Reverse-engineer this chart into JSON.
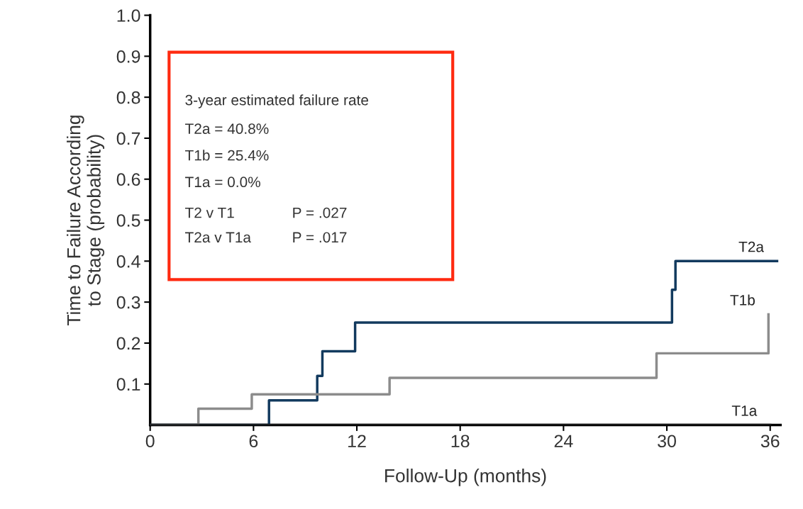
{
  "chart_data": {
    "type": "step",
    "ylabel": "Time to Failure According\nto Stage (probability)",
    "xlabel": "Follow-Up (months)",
    "xlim": [
      0,
      36.6
    ],
    "ylim": [
      0,
      1.0
    ],
    "xticks": [
      0,
      6,
      12,
      18,
      24,
      30,
      36
    ],
    "yticks": [
      0.1,
      0.2,
      0.3,
      0.4,
      0.5,
      0.6,
      0.7,
      0.8,
      0.9,
      {
        "value": 1,
        "label": "1.0"
      }
    ],
    "series": [
      {
        "name": "T2a",
        "color": "#123a5e",
        "x": [
          0,
          6.9,
          9.7,
          10.0,
          11.9,
          30.3,
          30.5,
          36.4
        ],
        "values": [
          0,
          0.06,
          0.12,
          0.18,
          0.25,
          0.33,
          0.4,
          0.4
        ]
      },
      {
        "name": "T1b",
        "color": "#8c8c8c",
        "x": [
          0,
          2.8,
          5.9,
          13.9,
          29.4,
          35.9,
          35.9
        ],
        "values": [
          0,
          0.04,
          0.075,
          0.115,
          0.175,
          0.27,
          0.27
        ]
      },
      {
        "name": "T1a",
        "color": "#1a1a1a",
        "x": [
          0,
          36.0
        ],
        "values": [
          0,
          0
        ]
      }
    ],
    "annotations": [
      "3-year estimated failure rate",
      "T2a = 40.8%",
      "T1b = 25.4%",
      "T1a = 0.0%",
      "T2 v T1",
      "P = .027",
      "T2a v T1a",
      "P = .017"
    ],
    "grid": false,
    "legend": false
  }
}
